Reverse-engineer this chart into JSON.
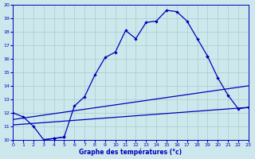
{
  "xlabel": "Graphe des températures (°c)",
  "main_curve": {
    "x": [
      0,
      1,
      2,
      3,
      4,
      5,
      6,
      7,
      8,
      9,
      10,
      11,
      12,
      13,
      14,
      15,
      16,
      17,
      18,
      19
    ],
    "y": [
      12.0,
      11.7,
      11.0,
      10.0,
      10.1,
      10.2,
      12.5,
      13.2,
      14.8,
      16.1,
      16.5,
      18.1,
      17.5,
      18.7,
      18.8,
      19.6,
      19.5,
      18.8,
      17.5,
      16.2
    ]
  },
  "second_curve_left": {
    "x": [
      3,
      4,
      5
    ],
    "y": [
      10.0,
      10.1,
      10.2
    ]
  },
  "second_curve_right": {
    "x": [
      19,
      20,
      21,
      22,
      23
    ],
    "y": [
      16.2,
      14.6,
      13.3,
      12.3,
      12.4
    ]
  },
  "diag_line1": {
    "x": [
      0,
      23
    ],
    "y": [
      11.1,
      12.4
    ]
  },
  "diag_line2": {
    "x": [
      0,
      23
    ],
    "y": [
      11.5,
      14.0
    ]
  },
  "ylim": [
    10,
    20
  ],
  "xlim": [
    0,
    23
  ],
  "yticks": [
    10,
    11,
    12,
    13,
    14,
    15,
    16,
    17,
    18,
    19,
    20
  ],
  "xticks": [
    0,
    1,
    2,
    3,
    4,
    5,
    6,
    7,
    8,
    9,
    10,
    11,
    12,
    13,
    14,
    15,
    16,
    17,
    18,
    19,
    20,
    21,
    22,
    23
  ],
  "bg_color": "#cce8ec",
  "grid_color": "#aacccc",
  "line_color": "#0000bb",
  "tick_color": "#0000bb",
  "marker": "D",
  "markersize": 2.2,
  "linewidth": 0.9,
  "tick_fontsize": 4.5,
  "xlabel_fontsize": 5.5
}
